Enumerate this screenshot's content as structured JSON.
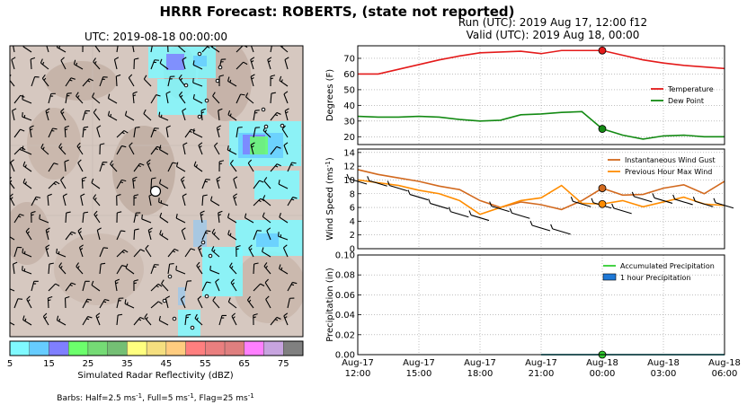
{
  "title": "HRRR Forecast: ROBERTS, (state not reported)",
  "map": {
    "title": "UTC: 2019-08-18 00:00:00",
    "colorbar": {
      "label": "Simulated Radar Reflectivity (dBZ)",
      "ticks": [
        "5",
        "15",
        "25",
        "35",
        "45",
        "55",
        "65",
        "75"
      ],
      "colors": [
        "#7ff9ff",
        "#66ccff",
        "#7f7fff",
        "#6cff6c",
        "#75db75",
        "#74bf74",
        "#ffff7f",
        "#f5df7f",
        "#ffcc7f",
        "#ff7f7f",
        "#ea7f7f",
        "#df7f7f",
        "#ff7fff",
        "#c7a4df",
        "#808080"
      ]
    },
    "barbs_note": {
      "prefix": "Barbs: Half=2.5 ms",
      "mid1": ", Full=5 ms",
      "mid2": ", Flag=25 ms",
      "sup": "-1"
    }
  },
  "run_info": {
    "run": "Run (UTC): 2019 Aug 17, 12:00 f12",
    "valid": "Valid (UTC): 2019 Aug 18, 00:00"
  },
  "chart_data": [
    {
      "type": "line",
      "ylabel": "Degrees (F)",
      "ylim": [
        15,
        78
      ],
      "yticks": [
        20,
        30,
        40,
        50,
        60,
        70
      ],
      "x_hours": [
        0,
        1,
        2,
        3,
        4,
        5,
        6,
        7,
        8,
        9,
        10,
        11,
        12,
        13,
        14,
        15,
        16,
        17,
        18
      ],
      "series": [
        {
          "name": "Temperature",
          "color": "#e41a1a",
          "values": [
            60,
            60,
            63,
            66,
            69,
            71.5,
            73.5,
            74,
            74.5,
            73,
            75,
            75,
            75,
            72,
            69,
            67,
            65.5,
            64.5,
            63.5
          ]
        },
        {
          "name": "Dew Point",
          "color": "#138a13",
          "values": [
            33,
            32.5,
            32.5,
            33,
            32.5,
            31,
            30,
            30.5,
            34,
            34.5,
            35.5,
            36,
            25,
            21,
            18.5,
            20.5,
            21,
            20,
            20
          ]
        }
      ],
      "marker": {
        "x": 12,
        "values": [
          75,
          25
        ]
      },
      "grid": true,
      "legend": "right"
    },
    {
      "type": "line",
      "ylabel": "Wind Speed (ms",
      "ylabel_sup": "-1",
      "ylabel_tail": ")",
      "ylim": [
        0,
        14.5
      ],
      "yticks": [
        0,
        2,
        4,
        6,
        8,
        10,
        12,
        14
      ],
      "x_hours": [
        0,
        1,
        2,
        3,
        4,
        5,
        6,
        7,
        8,
        9,
        10,
        11,
        12,
        13,
        14,
        15,
        16,
        17,
        18
      ],
      "series": [
        {
          "name": "Instantaneous Wind Gust",
          "color": "#d2691e",
          "values": [
            11.5,
            10.8,
            10.3,
            9.8,
            9.1,
            8.6,
            7,
            6,
            6.8,
            6.4,
            5.7,
            7,
            8.8,
            7.8,
            7.9,
            8.8,
            9.3,
            8,
            9.8
          ]
        },
        {
          "name": "Previous Hour Max Wind",
          "color": "#ff8c00",
          "values": [
            10,
            9.6,
            9.2,
            8.5,
            8,
            7,
            5,
            6,
            7,
            7.4,
            9.2,
            6.6,
            6.5,
            7,
            6.1,
            6.8,
            7.5,
            6.5,
            6.3
          ]
        }
      ],
      "marker": {
        "x": 12,
        "values": [
          8.8,
          6.5
        ]
      },
      "grid": true,
      "legend": "top-right"
    },
    {
      "type": "line",
      "ylabel": "Precipitation (in)",
      "ylim": [
        0,
        0.1
      ],
      "yticks": [
        "0.00",
        "0.02",
        "0.04",
        "0.06",
        "0.08",
        "0.10"
      ],
      "series": [
        {
          "name": "Accumulated Precipitation",
          "color": "#32cd32",
          "values": [
            0,
            0,
            0,
            0,
            0,
            0,
            0,
            0,
            0,
            0,
            0,
            0,
            0,
            0,
            0,
            0,
            0,
            0,
            0
          ]
        },
        {
          "name": "1 hour Precipitation",
          "color": "#1e78d6",
          "values": [
            0,
            0,
            0,
            0,
            0,
            0,
            0,
            0,
            0,
            0,
            0,
            0,
            0,
            0,
            0,
            0,
            0,
            0,
            0
          ]
        }
      ],
      "marker": {
        "x": 12,
        "values": [
          0
        ]
      },
      "grid": true,
      "legend": "top-right"
    }
  ],
  "x_tick_labels": [
    [
      "Aug-17",
      "12:00"
    ],
    [
      "Aug-17",
      "15:00"
    ],
    [
      "Aug-17",
      "18:00"
    ],
    [
      "Aug-17",
      "21:00"
    ],
    [
      "Aug-18",
      "00:00"
    ],
    [
      "Aug-18",
      "03:00"
    ],
    [
      "Aug-18",
      "06:00"
    ]
  ]
}
